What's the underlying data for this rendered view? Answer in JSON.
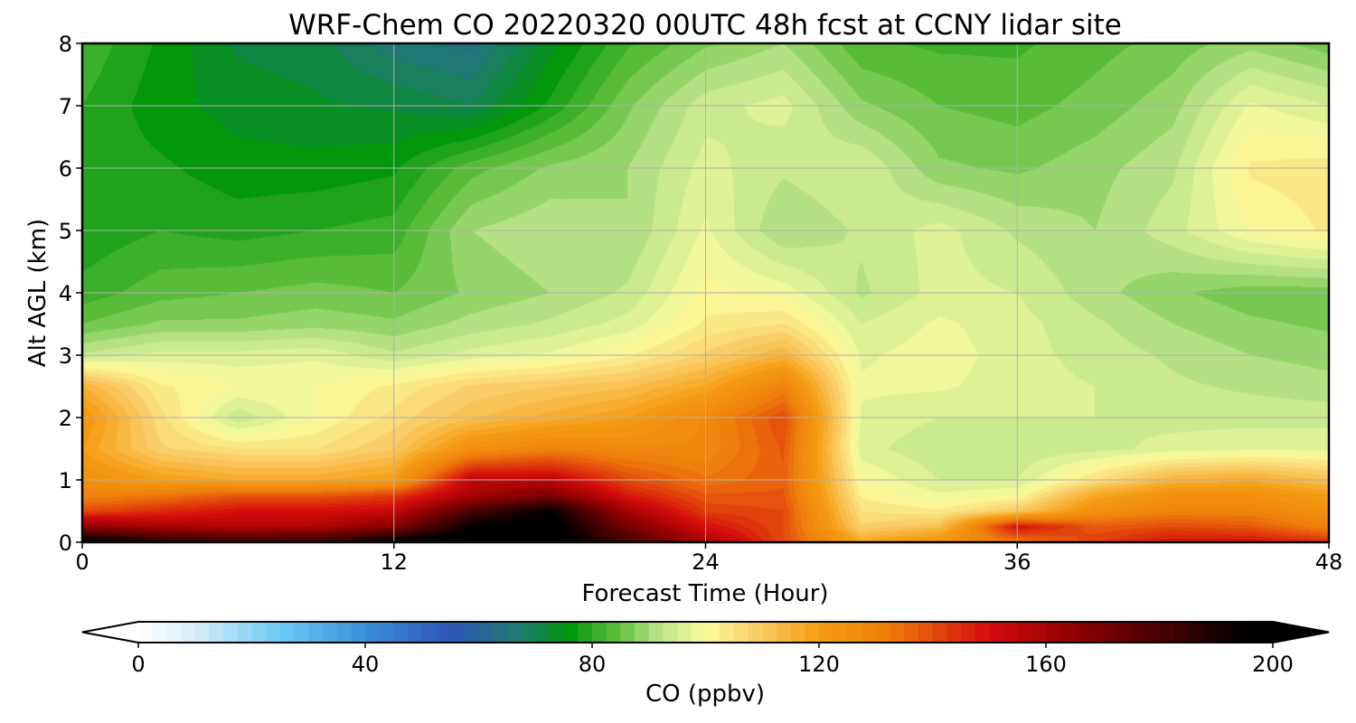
{
  "chart_data": {
    "type": "heatmap",
    "title": "WRF-Chem CO  20220320 00UTC 48h fcst at CCNY lidar site",
    "xlabel": "Forecast Time (Hour)",
    "ylabel": "Alt AGL (km)",
    "xlim": [
      0,
      48
    ],
    "ylim": [
      0,
      8
    ],
    "xticks": [
      0,
      12,
      24,
      36,
      48
    ],
    "yticks": [
      0,
      1,
      2,
      3,
      4,
      5,
      6,
      7,
      8
    ],
    "grid": true,
    "colorbar": {
      "label": "CO  (ppbv)",
      "min": 0,
      "max": 200,
      "ticks": [
        0,
        40,
        80,
        120,
        160,
        200
      ],
      "extend": "both",
      "stops": [
        {
          "value": 0,
          "color": "#ffffff"
        },
        {
          "value": 10,
          "color": "#d8eef9"
        },
        {
          "value": 25,
          "color": "#6ccaf5"
        },
        {
          "value": 40,
          "color": "#3a8fd8"
        },
        {
          "value": 55,
          "color": "#2e55b8"
        },
        {
          "value": 67,
          "color": "#1f7a70"
        },
        {
          "value": 76,
          "color": "#00960a"
        },
        {
          "value": 84,
          "color": "#5cbd3a"
        },
        {
          "value": 92,
          "color": "#bde58a"
        },
        {
          "value": 100,
          "color": "#fbfb9e"
        },
        {
          "value": 110,
          "color": "#f9c860"
        },
        {
          "value": 120,
          "color": "#f59c12"
        },
        {
          "value": 132,
          "color": "#ef7e0c"
        },
        {
          "value": 150,
          "color": "#d40c0c"
        },
        {
          "value": 165,
          "color": "#8f0000"
        },
        {
          "value": 180,
          "color": "#4a0000"
        },
        {
          "value": 195,
          "color": "#000000"
        },
        {
          "value": 200,
          "color": "#000000"
        }
      ]
    },
    "grid_x": [
      0,
      3,
      6,
      9,
      12,
      15,
      18,
      21,
      24,
      27,
      30,
      33,
      36,
      39,
      42,
      45,
      48
    ],
    "grid_y": [
      0,
      0.25,
      0.5,
      0.75,
      1,
      1.5,
      2,
      2.5,
      3,
      3.5,
      4,
      5,
      6,
      7,
      8
    ],
    "z": [
      [
        200,
        190,
        185,
        186,
        198,
        200,
        200,
        182,
        160,
        140,
        118,
        125,
        132,
        142,
        150,
        150,
        145
      ],
      [
        165,
        160,
        157,
        158,
        167,
        195,
        200,
        170,
        150,
        140,
        108,
        112,
        150,
        138,
        140,
        138,
        130
      ],
      [
        140,
        145,
        150,
        150,
        153,
        180,
        195,
        160,
        142,
        140,
        105,
        103,
        110,
        125,
        130,
        130,
        125
      ],
      [
        130,
        133,
        138,
        138,
        142,
        160,
        170,
        148,
        138,
        138,
        102,
        98,
        100,
        118,
        125,
        125,
        120
      ],
      [
        125,
        120,
        117,
        117,
        120,
        155,
        155,
        140,
        133,
        137,
        100,
        95,
        95,
        105,
        115,
        117,
        112
      ],
      [
        120,
        108,
        105,
        105,
        110,
        125,
        130,
        128,
        128,
        138,
        96,
        93,
        93,
        94,
        96,
        97,
        97
      ],
      [
        123,
        106,
        93,
        100,
        106,
        112,
        116,
        120,
        128,
        140,
        97,
        95,
        95,
        95,
        94,
        94,
        94
      ],
      [
        115,
        103,
        100,
        100,
        103,
        108,
        110,
        112,
        118,
        130,
        98,
        98,
        96,
        95,
        93,
        92,
        91
      ],
      [
        93,
        96,
        96,
        97,
        93,
        96,
        98,
        102,
        108,
        115,
        97,
        99,
        96,
        94,
        92,
        90,
        89
      ],
      [
        85,
        88,
        88,
        89,
        88,
        91,
        93,
        96,
        103,
        105,
        95,
        98,
        96,
        93,
        90,
        88,
        87
      ],
      [
        81,
        84,
        85,
        86,
        85,
        88,
        90,
        93,
        101,
        99,
        92,
        96,
        95,
        91,
        88,
        86,
        86
      ],
      [
        78,
        80,
        79,
        80,
        81,
        90,
        92,
        90,
        98,
        90,
        93,
        96,
        92,
        90,
        94,
        100,
        103
      ],
      [
        79,
        78,
        76,
        76,
        77,
        84,
        88,
        90,
        96,
        93,
        95,
        88,
        87,
        89,
        92,
        103,
        104
      ],
      [
        80,
        76,
        74,
        73,
        72,
        70,
        78,
        87,
        94,
        96,
        88,
        85,
        84,
        86,
        89,
        98,
        95
      ],
      [
        82,
        77,
        72,
        71,
        66,
        64,
        74,
        82,
        87,
        90,
        83,
        82,
        82,
        84,
        86,
        89,
        86
      ]
    ]
  }
}
